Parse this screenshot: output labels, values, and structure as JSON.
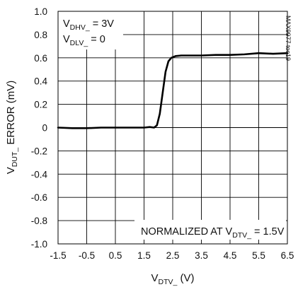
{
  "chart_data": {
    "type": "line",
    "x": [
      -1.5,
      -1.0,
      -0.5,
      0.0,
      0.5,
      1.0,
      1.5,
      1.7,
      1.85,
      1.95,
      2.05,
      2.15,
      2.25,
      2.35,
      2.45,
      2.6,
      2.8,
      3.2,
      3.5,
      4.0,
      4.5,
      5.0,
      5.5,
      6.0,
      6.5
    ],
    "series": [
      {
        "values": [
          0.0,
          -0.005,
          -0.005,
          0.0,
          0.0,
          0.0,
          0.0,
          0.005,
          0.0,
          0.02,
          0.12,
          0.3,
          0.48,
          0.57,
          0.6,
          0.615,
          0.62,
          0.62,
          0.62,
          0.625,
          0.625,
          0.63,
          0.64,
          0.635,
          0.64
        ],
        "color": "#000000"
      }
    ],
    "xlim": [
      -1.5,
      6.5
    ],
    "ylim": [
      -1.0,
      1.0
    ],
    "xticks": [
      "-1.5",
      "-0.5",
      "0.5",
      "1.5",
      "2.5",
      "3.5",
      "4.5",
      "5.5",
      "6.5"
    ],
    "yticks": [
      "1.0",
      "0.8",
      "0.6",
      "0.4",
      "0.2",
      "0",
      "-0.2",
      "-0.4",
      "-0.6",
      "-0.8",
      "-1.0"
    ],
    "xlabel": {
      "main": "V",
      "sub": "DTV_",
      "rest": " (V)"
    },
    "ylabel": {
      "main": "V",
      "sub": "DUT_",
      "rest": " ERROR (mV)"
    },
    "grid": true,
    "annotations": {
      "line1": {
        "main": "V",
        "sub": "DHV_",
        "rest": " = 3V"
      },
      "line2": {
        "main": "V",
        "sub": "DLV_",
        "rest": " = 0"
      },
      "normalized": {
        "prefix": "NORMALIZED AT V",
        "sub": "DTV_",
        "rest": " = 1.5V"
      },
      "code": "MAX9977 toc19"
    }
  }
}
